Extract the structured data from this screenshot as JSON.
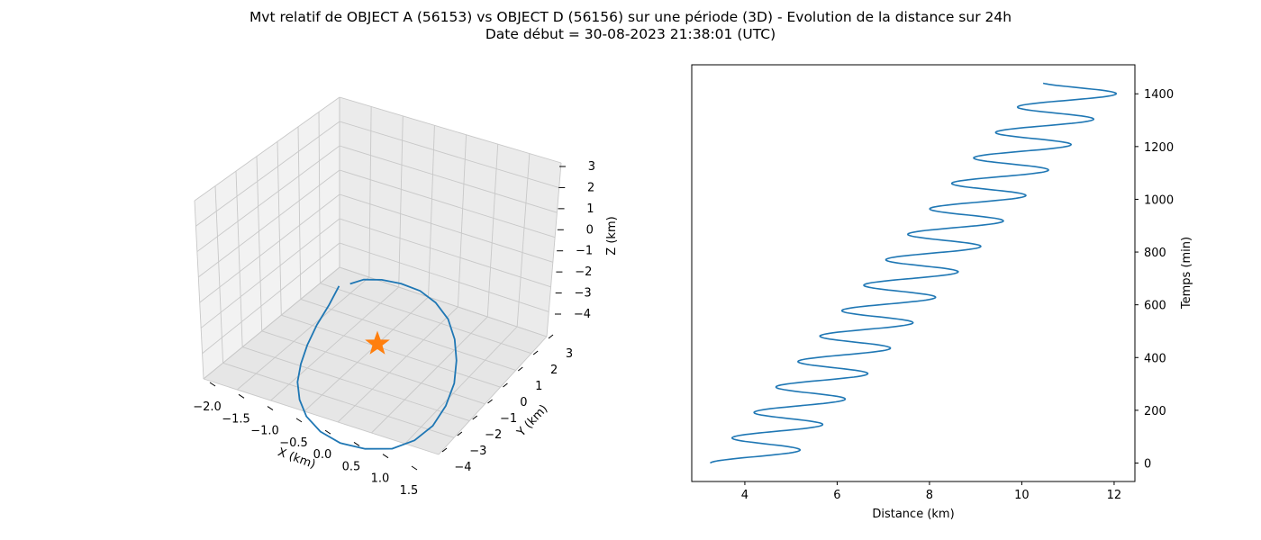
{
  "figure": {
    "title_line1": "Mvt relatif de OBJECT A (56153) vs OBJECT D (56156) sur une période (3D) - Evolution de la distance sur 24h",
    "title_line2": "Date début = 30-08-2023 21:38:01 (UTC)"
  },
  "chart_data": [
    {
      "type": "line3d",
      "xlabel": "X (km)",
      "ylabel": "Y (km)",
      "zlabel": "Z (km)",
      "xticks": [
        "−2.0",
        "−1.5",
        "−1.0",
        "−0.5",
        "0.0",
        "0.5",
        "1.0",
        "1.5"
      ],
      "yticks": [
        "−4",
        "−3",
        "−2",
        "−1",
        "0",
        "1",
        "2",
        "3"
      ],
      "zticks": [
        "−4",
        "−3",
        "−2",
        "−1",
        "0",
        "1",
        "2",
        "3"
      ],
      "grid": true,
      "series": [
        {
          "kind": "trajectory",
          "color": "#1f77b4",
          "x": [
            -0.2,
            -0.55,
            -0.95,
            -1.3,
            -1.6,
            -1.85,
            -2.0,
            -2.05,
            -1.95,
            -1.7,
            -1.3,
            -0.8,
            -0.3,
            0.2,
            0.65,
            1.05,
            1.35,
            1.55,
            1.65,
            1.6,
            1.45,
            1.2,
            0.9,
            0.55,
            0.2
          ],
          "y": [
            2.0,
            1.55,
            1.05,
            0.55,
            0.0,
            -0.6,
            -1.25,
            -1.9,
            -2.55,
            -3.1,
            -3.5,
            -3.7,
            -3.6,
            -3.2,
            -2.6,
            -1.85,
            -1.0,
            -0.2,
            0.6,
            1.3,
            1.9,
            2.4,
            2.75,
            2.85,
            2.6
          ],
          "z": [
            1.3,
            0.5,
            -0.3,
            -1.1,
            -1.8,
            -2.4,
            -2.9,
            -3.3,
            -3.55,
            -3.6,
            -3.4,
            -3.0,
            -2.4,
            -1.7,
            -0.9,
            -0.1,
            0.6,
            1.2,
            1.7,
            2.0,
            2.1,
            2.0,
            1.8,
            1.55,
            1.3
          ]
        },
        {
          "kind": "marker",
          "marker": "star",
          "color": "#ff7f0e",
          "x": [
            0.0
          ],
          "y": [
            0.0
          ],
          "z": [
            0.0
          ]
        }
      ]
    },
    {
      "type": "line",
      "xlabel": "Distance (km)",
      "ylabel": "Temps (min)",
      "xlim": [
        2.85,
        12.45
      ],
      "ylim": [
        -70,
        1510
      ],
      "xticks": [
        4,
        6,
        8,
        10,
        12
      ],
      "yticks": [
        0,
        200,
        400,
        600,
        800,
        1000,
        1200,
        1400
      ],
      "grid": false,
      "yaxis_side": "right",
      "series": [
        {
          "color": "#1f77b4",
          "model": {
            "distance_start": 4.1,
            "distance_end": 11.3,
            "amplitude_start": 0.85,
            "amplitude_end": 0.95,
            "period_min": 96.5,
            "phase_deg": 180,
            "t_start": 0,
            "t_end": 1440
          }
        }
      ]
    }
  ]
}
